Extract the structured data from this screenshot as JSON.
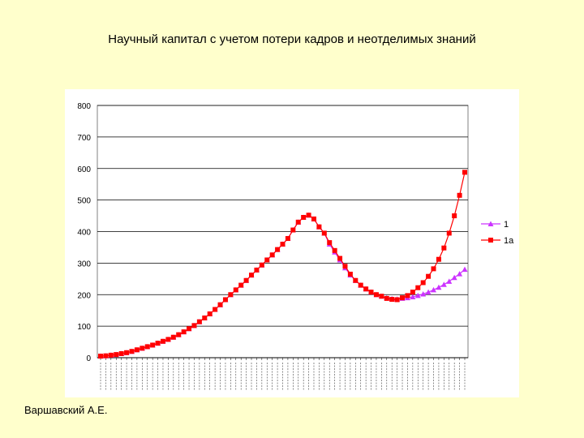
{
  "slide": {
    "title": "Научный капитал с учетом потери кадров и неотделимых знаний",
    "author": "Варшавский А.Е."
  },
  "chart_data": {
    "type": "line",
    "title": "",
    "xlabel": "",
    "ylabel": "",
    "ylim": [
      0,
      800
    ],
    "yticks": [
      0,
      100,
      200,
      300,
      400,
      500,
      600,
      700,
      800
    ],
    "grid": "horizontal",
    "legend_position": "right",
    "x_tick_labels_note": "vertical year labels, illegible",
    "series": [
      {
        "name": "1",
        "color": "#cc33ff",
        "marker": "triangle",
        "values": [
          5,
          6,
          8,
          10,
          13,
          16,
          20,
          25,
          30,
          35,
          40,
          46,
          52,
          58,
          65,
          73,
          82,
          92,
          102,
          114,
          126,
          139,
          153,
          168,
          184,
          200,
          215,
          230,
          245,
          262,
          278,
          294,
          310,
          326,
          343,
          360,
          378,
          405,
          430,
          445,
          452,
          440,
          415,
          395,
          360,
          335,
          310,
          285,
          262,
          245,
          230,
          218,
          208,
          200,
          195,
          190,
          187,
          186,
          188,
          190,
          193,
          197,
          202,
          208,
          215,
          223,
          232,
          242,
          254,
          266,
          280
        ]
      },
      {
        "name": "1а",
        "color": "#ff0000",
        "marker": "square",
        "values": [
          5,
          6,
          8,
          10,
          13,
          16,
          20,
          25,
          30,
          35,
          40,
          46,
          52,
          58,
          65,
          73,
          82,
          92,
          102,
          114,
          126,
          139,
          153,
          168,
          184,
          200,
          215,
          230,
          245,
          262,
          278,
          294,
          310,
          326,
          343,
          360,
          378,
          405,
          430,
          445,
          452,
          440,
          415,
          395,
          365,
          340,
          315,
          290,
          265,
          245,
          230,
          218,
          208,
          200,
          195,
          188,
          185,
          184,
          190,
          197,
          208,
          222,
          238,
          258,
          282,
          312,
          348,
          395,
          450,
          515,
          588
        ]
      }
    ]
  }
}
